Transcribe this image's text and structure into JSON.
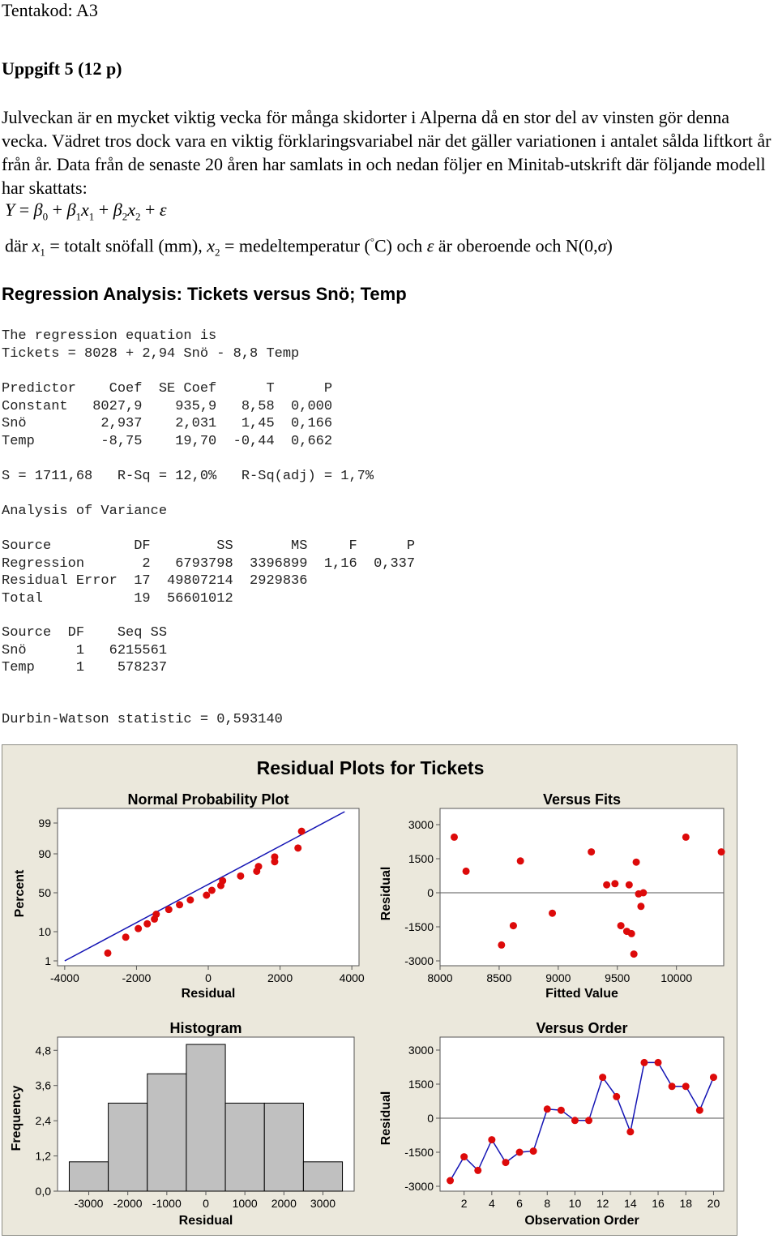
{
  "header": "Tentakod: A3",
  "task_heading": "Uppgift 5 (12 p)",
  "intro": "Julveckan är en mycket viktig vecka för många skidorter i Alperna då en stor del av vinsten gör denna vecka. Vädret tros dock vara en viktig förklaringsvariabel när det gäller variationen i antalet sålda liftkort år från år. Data från de senaste 20 åren har samlats in och nedan följer en Minitab-utskrift där följande modell har skattats:",
  "model_equation": {
    "lhs": "Y",
    "eq": "=",
    "b0": "β",
    "s0": "0",
    "plus1": "+",
    "b1": "β",
    "s1": "1",
    "x1": "x",
    "sx1": "1",
    "plus2": "+",
    "b2": "β",
    "s2": "2",
    "x2": "x",
    "sx2": "2",
    "plus3": "+",
    "eps": "ε"
  },
  "definitions": {
    "dar": "där",
    "x1": "x",
    "sx1": "1",
    "def1": "= totalt snöfall (mm),",
    "x2": "x",
    "sx2": "2",
    "def2": "= medeltemperatur (",
    "deg": "°",
    "def2b": "C) och",
    "eps": "ε",
    "def3": "är oberoende och N(0,",
    "sigma": "σ",
    "close": ")"
  },
  "regression_title": "Regression Analysis: Tickets versus Snö; Temp",
  "equation_block": "The regression equation is\nTickets = 8028 + 2,94 Snö - 8,8 Temp",
  "coef_table": "Predictor    Coef  SE Coef      T      P\nConstant   8027,9    935,9   8,58  0,000\nSnö         2,937    2,031   1,45  0,166\nTemp        -8,75    19,70  -0,44  0,662",
  "fit_stats": "S = 1711,68   R-Sq = 12,0%   R-Sq(adj) = 1,7%",
  "anova_title": "Analysis of Variance",
  "anova_table": "Source          DF        SS       MS     F      P\nRegression       2   6793798  3396899  1,16  0,337\nResidual Error  17  49807214  2929836\nTotal           19  56601012",
  "seq_table": "Source  DF    Seq SS\nSnö      1   6215561\nTemp     1    578237",
  "durbin_watson": "Durbin-Watson statistic = 0,593140",
  "figure_title": "Residual Plots for Tickets",
  "chart_data": [
    {
      "type": "scatter",
      "title": "Normal Probability Plot",
      "xlabel": "Residual",
      "ylabel": "Percent",
      "xlim": [
        -4000,
        4000
      ],
      "x_ticks": [
        "-4000",
        "-2000",
        "0",
        "2000",
        "4000"
      ],
      "y_ticks": [
        "1",
        "10",
        "50",
        "90",
        "99"
      ],
      "grid": false,
      "x": [
        -2800,
        -2300,
        -1950,
        -1700,
        -1500,
        -1450,
        -1100,
        -800,
        -500,
        -50,
        100,
        350,
        400,
        900,
        1350,
        1400,
        1850,
        1850,
        2500,
        2600
      ],
      "y": [
        3.4,
        8.3,
        13.2,
        18.1,
        23.0,
        27.9,
        32.8,
        37.7,
        42.6,
        47.5,
        52.5,
        57.4,
        62.3,
        67.2,
        72.1,
        77.0,
        81.9,
        86.8,
        91.7,
        96.6
      ],
      "fit_line": {
        "x": [
          -4000,
          3800
        ],
        "y": [
          1,
          99.5
        ]
      },
      "marker_color": "#dd0a0a",
      "line_color": "#1414b4"
    },
    {
      "type": "scatter",
      "title": "Versus Fits",
      "xlabel": "Fitted Value",
      "ylabel": "Residual",
      "xlim": [
        8000,
        10400
      ],
      "ylim": [
        -3000,
        3000
      ],
      "x_ticks": [
        "8000",
        "8500",
        "9000",
        "9500",
        "10000"
      ],
      "y_ticks": [
        "3000",
        "1500",
        "0",
        "-1500",
        "-3000"
      ],
      "reference_line": 0,
      "x": [
        8120,
        8220,
        8520,
        8620,
        8680,
        8950,
        9280,
        9410,
        9480,
        9530,
        9580,
        9600,
        9620,
        9640,
        9660,
        9680,
        9700,
        9720,
        10080,
        10380
      ],
      "y": [
        2450,
        950,
        -2300,
        -1450,
        1400,
        -900,
        1800,
        350,
        400,
        -1450,
        -1700,
        350,
        -1800,
        -2700,
        1350,
        -50,
        -600,
        0,
        2450,
        1800
      ],
      "marker_color": "#dd0a0a"
    },
    {
      "type": "bar",
      "title": "Histogram",
      "xlabel": "Residual",
      "ylabel": "Frequency",
      "categories": [
        "-3000",
        "-2000",
        "-1000",
        "0",
        "1000",
        "2000",
        "3000"
      ],
      "bin_edges": [
        -3500,
        -2500,
        -1500,
        -500,
        500,
        1500,
        2500,
        3500
      ],
      "values": [
        1,
        3,
        4,
        5,
        3,
        3,
        1
      ],
      "y_ticks": [
        "0,0",
        "1,2",
        "2,4",
        "3,6",
        "4,8"
      ],
      "ylim": [
        0,
        5
      ],
      "bar_color": "#c0c0c0"
    },
    {
      "type": "line",
      "title": "Versus Order",
      "xlabel": "Observation Order",
      "ylabel": "Residual",
      "x": [
        1,
        2,
        3,
        4,
        5,
        6,
        7,
        8,
        9,
        10,
        11,
        12,
        13,
        14,
        15,
        16,
        17,
        18,
        19,
        20
      ],
      "y": [
        -2750,
        -1700,
        -2300,
        -950,
        -1950,
        -1500,
        -1450,
        400,
        350,
        -100,
        -100,
        1800,
        950,
        -600,
        2450,
        2450,
        1400,
        1400,
        350,
        1800
      ],
      "xlim": [
        0.5,
        20.5
      ],
      "ylim": [
        -3000,
        3000
      ],
      "x_ticks": [
        "2",
        "4",
        "6",
        "8",
        "10",
        "12",
        "14",
        "16",
        "18",
        "20"
      ],
      "y_ticks": [
        "3000",
        "1500",
        "0",
        "-1500",
        "-3000"
      ],
      "reference_line": 0,
      "marker_color": "#dd0a0a",
      "line_color": "#1414b4"
    }
  ]
}
